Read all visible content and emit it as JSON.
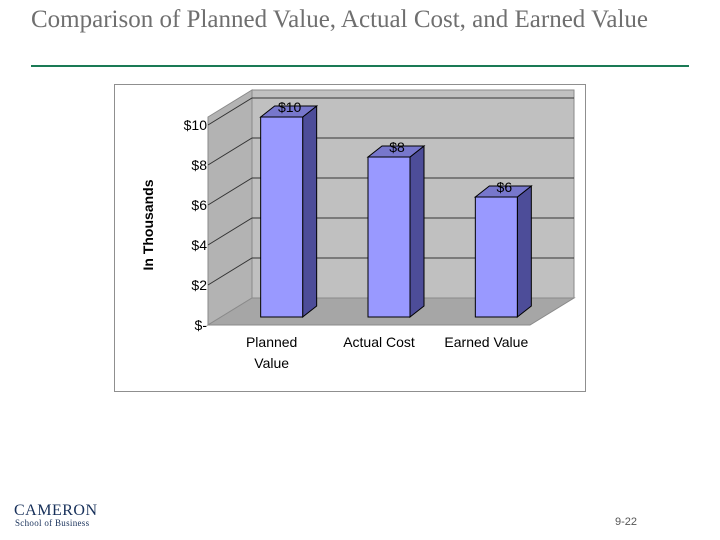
{
  "slide": {
    "title": "Comparison of Planned Value, Actual Cost, and Earned Value",
    "page_number": "9-22"
  },
  "logo": {
    "name": "CAMERON",
    "subtitle": "School of Business"
  },
  "chart_data": {
    "type": "bar",
    "categories": [
      "Planned Value",
      "Actual Cost",
      "Earned Value"
    ],
    "category_lines": [
      [
        "Planned",
        "Value"
      ],
      [
        "Actual Cost"
      ],
      [
        "Earned Value"
      ]
    ],
    "values": [
      10,
      8,
      6
    ],
    "data_labels": [
      "$10",
      "$8",
      "$6"
    ],
    "ylabel": "In Thousands",
    "y_ticks": [
      0,
      2,
      4,
      6,
      8,
      10
    ],
    "y_tick_labels": [
      "$-",
      "$2",
      "$4",
      "$6",
      "$8",
      "$10"
    ],
    "ylim": [
      0,
      10
    ],
    "grid": true,
    "three_d": true,
    "colors": {
      "bar_front": "#9999ff",
      "bar_side": "#4d4d99",
      "bar_top": "#7777cc",
      "wall": "#c0c0c0",
      "floor": "#a6a6a6"
    }
  }
}
